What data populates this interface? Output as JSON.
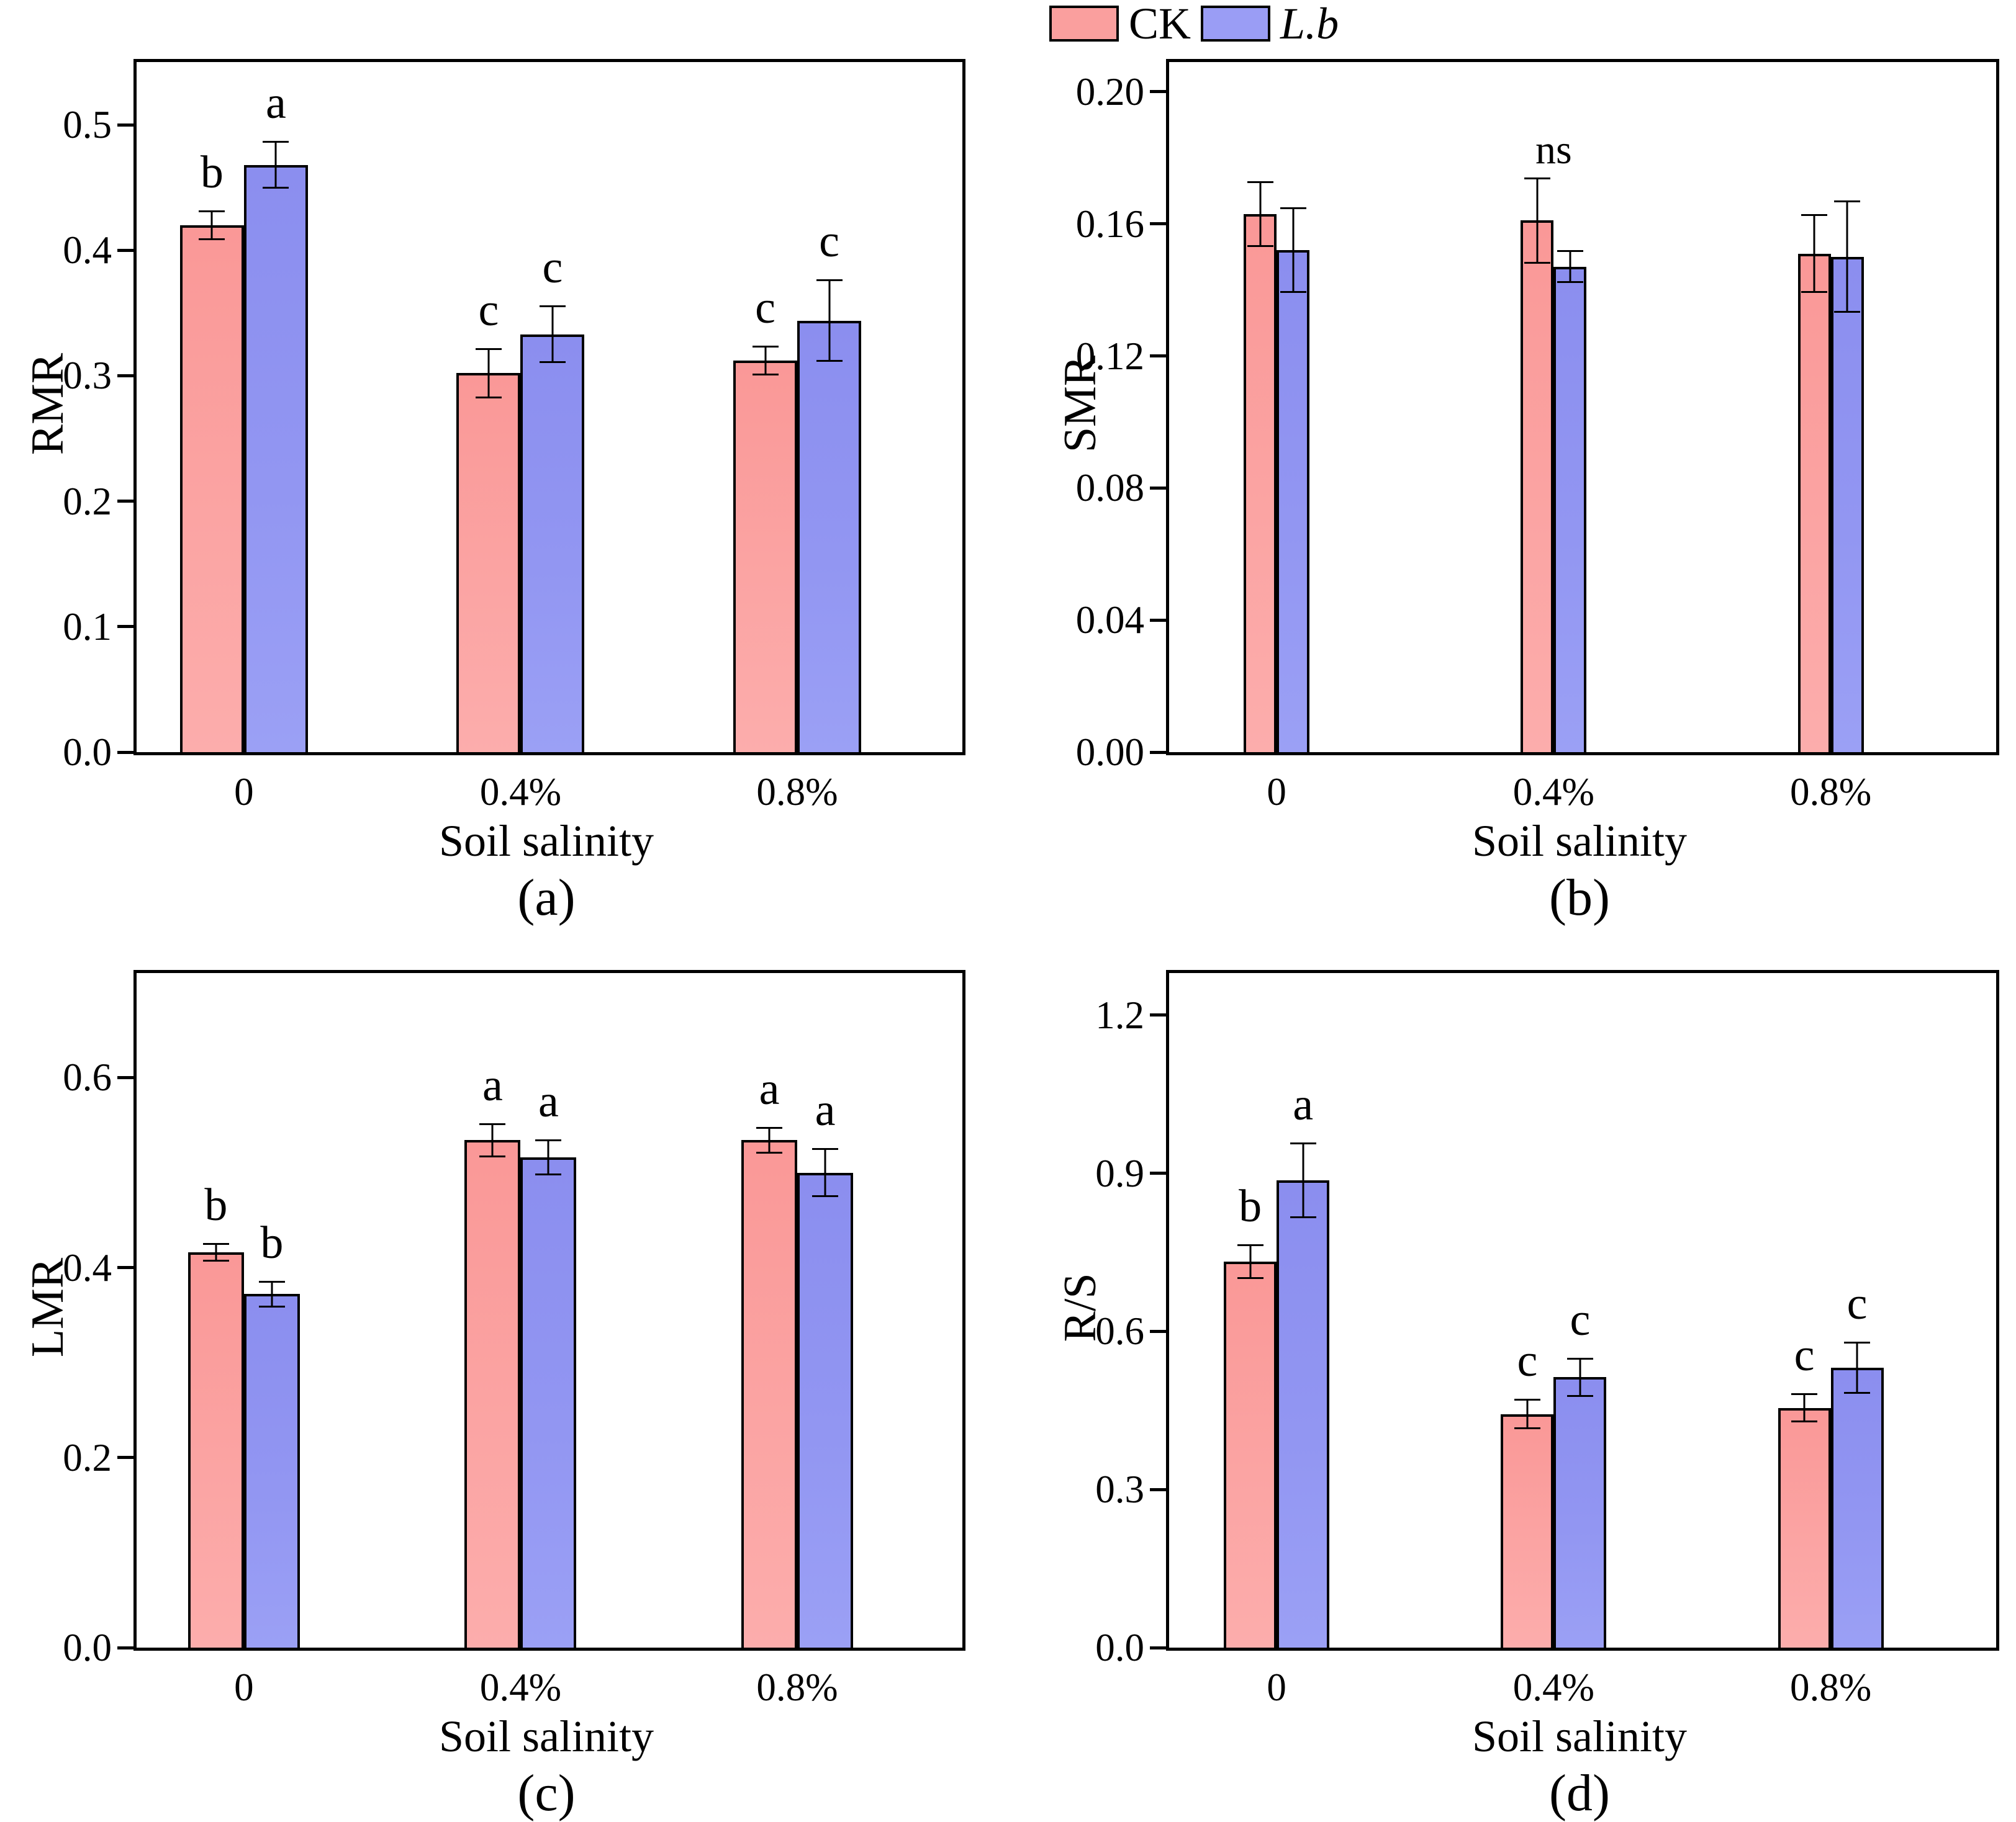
{
  "legend": {
    "items": [
      {
        "label": "CK",
        "color": "#fa9f9e",
        "italic": false
      },
      {
        "label": "L.b",
        "color": "#9a9df5",
        "italic": true
      }
    ]
  },
  "chart_data": [
    {
      "type": "bar",
      "panel_label": "(a)",
      "ylabel": "RMR",
      "xlabel": "Soil salinity",
      "categories": [
        "0",
        "0.4%",
        "0.8%"
      ],
      "ylim": [
        0,
        0.55
      ],
      "yticks": [
        "0.0",
        "0.1",
        "0.2",
        "0.3",
        "0.4",
        "0.5"
      ],
      "grid": false,
      "legend_position": "top-center",
      "series": [
        {
          "name": "CK",
          "values": [
            0.42,
            0.302,
            0.312
          ],
          "errors": [
            0.012,
            0.02,
            0.012
          ],
          "letters": [
            "b",
            "c",
            "c"
          ]
        },
        {
          "name": "L.b",
          "values": [
            0.468,
            0.333,
            0.344
          ],
          "errors": [
            0.019,
            0.023,
            0.033
          ],
          "letters": [
            "a",
            "c",
            "c"
          ]
        }
      ]
    },
    {
      "type": "bar",
      "panel_label": "(b)",
      "ylabel": "SMR",
      "xlabel": "Soil salinity",
      "categories": [
        "0",
        "0.4%",
        "0.8%"
      ],
      "ylim": [
        0,
        0.209
      ],
      "yticks": [
        "0.00",
        "0.04",
        "0.08",
        "0.12",
        "0.16",
        "0.20"
      ],
      "grid": false,
      "annotation": {
        "text": "ns",
        "group_index": 1,
        "value": 0.181
      },
      "series": [
        {
          "name": "CK",
          "values": [
            0.163,
            0.161,
            0.151
          ],
          "errors": [
            0.01,
            0.013,
            0.012
          ],
          "letters": [
            "",
            "",
            ""
          ]
        },
        {
          "name": "L.b",
          "values": [
            0.152,
            0.147,
            0.15
          ],
          "errors": [
            0.013,
            0.005,
            0.017
          ],
          "letters": [
            "",
            "",
            ""
          ]
        }
      ]
    },
    {
      "type": "bar",
      "panel_label": "(c)",
      "ylabel": "LMR",
      "xlabel": "Soil salinity",
      "categories": [
        "0",
        "0.4%",
        "0.8%"
      ],
      "ylim": [
        0,
        0.71
      ],
      "yticks": [
        "0.0",
        "0.2",
        "0.4",
        "0.6"
      ],
      "grid": false,
      "series": [
        {
          "name": "CK",
          "values": [
            0.416,
            0.534,
            0.534
          ],
          "errors": [
            0.01,
            0.018,
            0.014
          ],
          "letters": [
            "b",
            "a",
            "a"
          ]
        },
        {
          "name": "L.b",
          "values": [
            0.372,
            0.516,
            0.5
          ],
          "errors": [
            0.014,
            0.019,
            0.026
          ],
          "letters": [
            "b",
            "a",
            "a"
          ]
        }
      ]
    },
    {
      "type": "bar",
      "panel_label": "(d)",
      "ylabel": "R/S",
      "xlabel": "Soil salinity",
      "categories": [
        "0",
        "0.4%",
        "0.8%"
      ],
      "ylim": [
        0,
        1.28
      ],
      "yticks": [
        "0.0",
        "0.3",
        "0.6",
        "0.9",
        "1.2"
      ],
      "grid": false,
      "series": [
        {
          "name": "CK",
          "values": [
            0.732,
            0.443,
            0.455
          ],
          "errors": [
            0.033,
            0.029,
            0.028
          ],
          "letters": [
            "b",
            "c",
            "c"
          ]
        },
        {
          "name": "L.b",
          "values": [
            0.887,
            0.513,
            0.531
          ],
          "errors": [
            0.072,
            0.037,
            0.049
          ],
          "letters": [
            "a",
            "c",
            "c"
          ]
        }
      ]
    }
  ]
}
